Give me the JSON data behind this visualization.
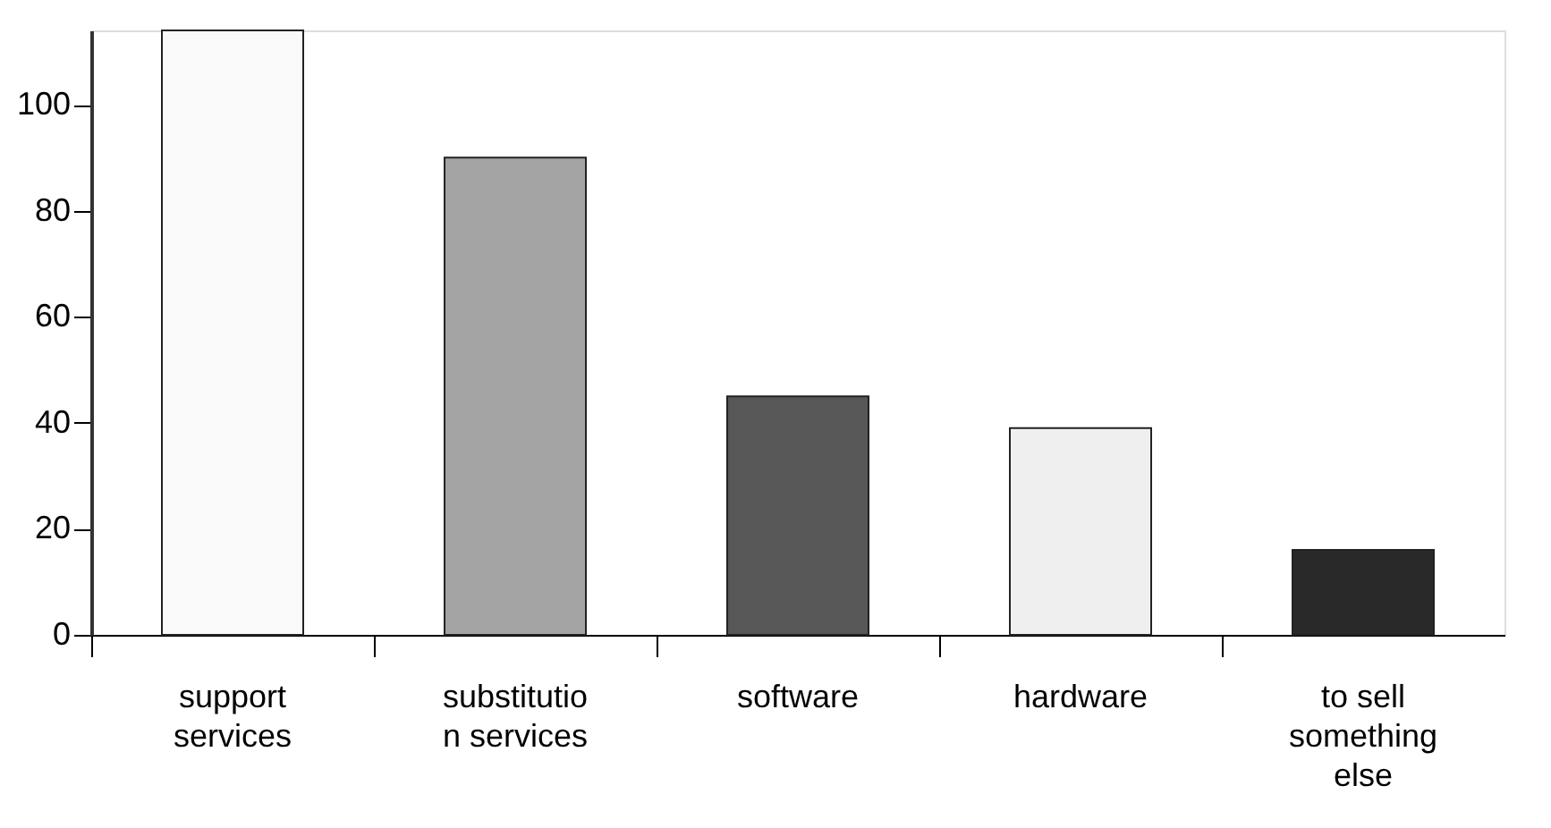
{
  "chart_data": {
    "type": "bar",
    "categories": [
      "support services",
      "substitution services",
      "software",
      "hardware",
      "to sell something else"
    ],
    "values": [
      114,
      90,
      45,
      39,
      16
    ],
    "colors": [
      "#f9f9f9",
      "#a4a4a4",
      "#575757",
      "#efefef",
      "#292929"
    ],
    "ylim": [
      0,
      114
    ],
    "yticks": [
      0,
      20,
      40,
      60,
      80,
      100
    ]
  }
}
